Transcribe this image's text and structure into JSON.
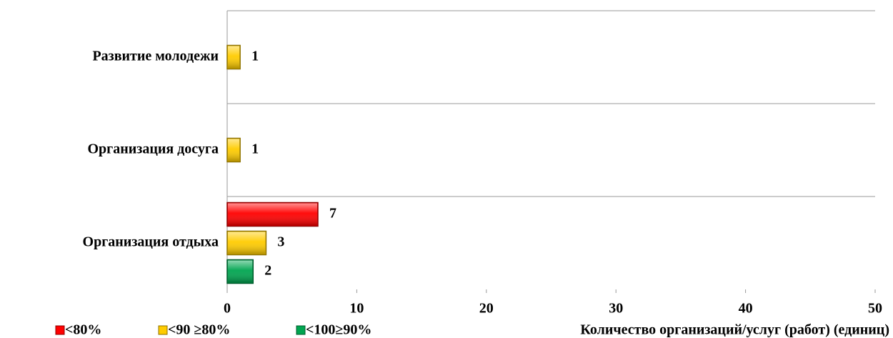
{
  "chart_data": {
    "type": "bar",
    "orientation": "horizontal",
    "categories": [
      "Развитие молодежи",
      "Организация досуга",
      "Организация отдыха"
    ],
    "series": [
      {
        "name": "<80%",
        "color": "#ff0000",
        "values": [
          null,
          null,
          7
        ]
      },
      {
        "name": "<90 ≥80%",
        "color": "#ffcc00",
        "values": [
          1,
          1,
          3
        ]
      },
      {
        "name": "<100≥90%",
        "color": "#00a550",
        "values": [
          null,
          null,
          2
        ]
      }
    ],
    "xlabel": "Количество организаций/услуг (работ) (единиц)",
    "xlim": [
      0,
      50
    ],
    "xticks": [
      0,
      10,
      20,
      30,
      40,
      50
    ],
    "grid": true,
    "legend": "bottom"
  }
}
